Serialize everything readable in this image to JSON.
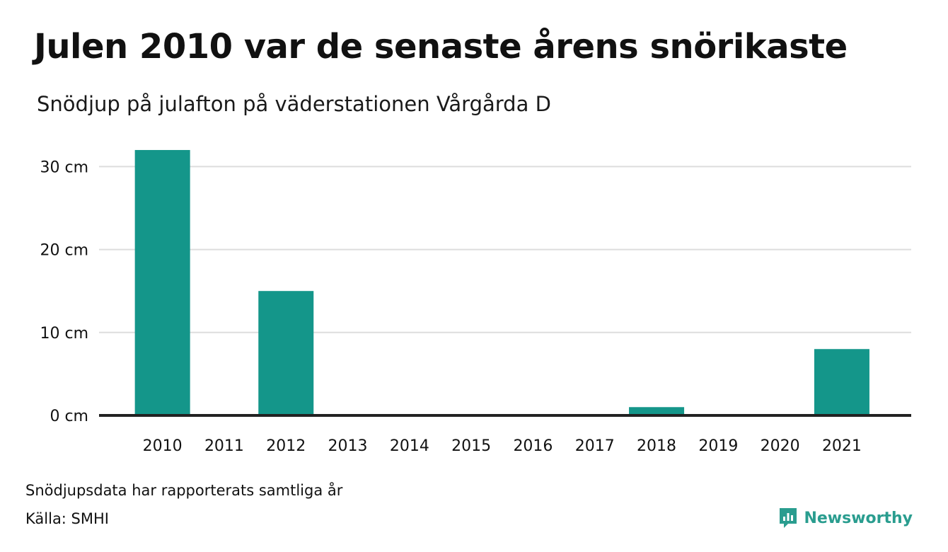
{
  "header": {
    "title": "Julen 2010 var de senaste årens snörikaste",
    "subtitle": "Snödjup på julafton på väderstationen Vårgårda D"
  },
  "footer": {
    "note": "Snödjupsdata har rapporterats samtliga år",
    "source": "Källa: SMHI",
    "brand": "Newsworthy"
  },
  "colors": {
    "bar": "#14968a",
    "grid": "#dddddd",
    "baseline": "#222222",
    "brand": "#2a9d8f"
  },
  "chart_data": {
    "type": "bar",
    "title": "Julen 2010 var de senaste årens snörikaste",
    "subtitle": "Snödjup på julafton på väderstationen Vårgårda D",
    "categories": [
      "2010",
      "2011",
      "2012",
      "2013",
      "2014",
      "2015",
      "2016",
      "2017",
      "2018",
      "2019",
      "2020",
      "2021"
    ],
    "values": [
      32,
      0,
      15,
      0,
      0,
      0,
      0,
      0,
      1,
      0,
      0,
      8
    ],
    "unit": "cm",
    "yticks": [
      0,
      10,
      20,
      30
    ],
    "ytick_labels": [
      "0 cm",
      "10 cm",
      "20 cm",
      "30 cm"
    ],
    "ylim": [
      0,
      32
    ],
    "grid": true,
    "legend": "none"
  }
}
